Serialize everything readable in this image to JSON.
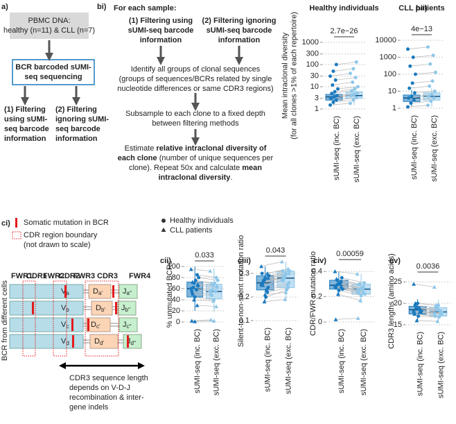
{
  "panel_a": {
    "label": "a)",
    "source": [
      "PBMC DNA:",
      "healthy (n=11) & CLL (n=7)"
    ],
    "sequencing": [
      "BCR barcoded sUMI-",
      "seq sequencing"
    ],
    "option1": [
      "(1) Filtering",
      "using sUMI-",
      "seq barcode",
      "information"
    ],
    "option2": [
      "(2) Filtering",
      "ignoring sUMI-",
      "seq barcode",
      "information"
    ]
  },
  "panel_bi": {
    "label": "bi)",
    "heading": "For each sample:",
    "option1": [
      "(1) Filtering using",
      "sUMI-seq barcode",
      "information"
    ],
    "option2": [
      "(2) Filtering ignoring",
      "sUMI-seq barcode",
      "information"
    ],
    "identify": [
      "Identify all groups of clonal sequences",
      "(groups of sequences/BCRs related by single",
      "nucleotide differences or same CDR3 regions)"
    ],
    "subsample": [
      "Subsample to each clone to a fixed depth",
      "between filtering methods"
    ],
    "estimate": [
      [
        {
          "text": "Estimate "
        },
        {
          "text": "relative intraclonal diversity of",
          "bold": true
        }
      ],
      [
        {
          "text": "each clone",
          "bold": true
        },
        {
          "text": " (number of unique sequences per"
        }
      ],
      [
        {
          "text": "clone). Repeat 50x and calculate "
        },
        {
          "text": "mean",
          "bold": true
        }
      ],
      [
        {
          "text": "intraclonal diversity",
          "bold": true
        },
        {
          "text": "."
        }
      ]
    ]
  },
  "panel_ci": {
    "label": "ci)",
    "legend": [
      "Somatic mutation in BCR",
      "CDR region boundary",
      "(not drawn to scale)"
    ],
    "regions": [
      "FWR1",
      "CDR1",
      "FWR2",
      "CDR2",
      "FWR3",
      "CDR3",
      "FWR4"
    ],
    "segment_letters": [
      "V",
      "D",
      "J"
    ],
    "rows": [
      {
        "v": "a",
        "d": "a′",
        "j": "a′′"
      },
      {
        "v": "b",
        "d": "b′",
        "j": "b′′"
      },
      {
        "v": "c",
        "d": "c′",
        "j": "c′′"
      },
      {
        "v": "d",
        "d": "d′",
        "j": "d′′"
      }
    ],
    "side_label": "BCR from different cells",
    "note": [
      "CDR3 sequence length",
      "depends on V-D-J",
      "recombination & inter-",
      "gene indels"
    ]
  },
  "panel_c_legend": [
    "Healthy individuals",
    "CLL patients"
  ],
  "chart_data": [
    {
      "type": "box",
      "panel_label": "bii)",
      "title": "Healthy individuals",
      "ylabel": [
        "Mean intraclonal diversity",
        "(for all clones >1% of each repertoire)"
      ],
      "pvalue": "2.7e−26",
      "log": true,
      "grid": true,
      "ylim": [
        1,
        1000
      ],
      "yticks": [
        1,
        3,
        10,
        30,
        100,
        300,
        1000
      ],
      "series": [
        {
          "name": "sUMI-seq (inc. BC)",
          "color": "#1a7abf",
          "values": [
            1.5,
            2,
            2.5,
            3,
            3.5,
            4,
            5,
            6,
            8,
            12,
            20,
            30,
            50,
            100
          ],
          "box": {
            "whislo": 1.5,
            "q1": 2.5,
            "med": 3.5,
            "q3": 4.5,
            "whishi": 7
          }
        },
        {
          "name": "sUMI-seq (exc. BC)",
          "color": "#8ec7ea",
          "values": [
            1.8,
            2.5,
            3.2,
            4,
            4.5,
            5.2,
            6.5,
            8,
            10,
            16,
            26,
            40,
            65,
            130
          ],
          "box": {
            "whislo": 1.5,
            "q1": 3,
            "med": 4,
            "q3": 6,
            "whishi": 10
          }
        }
      ]
    },
    {
      "type": "box",
      "title": "CLL patients",
      "pvalue": "4e−13",
      "log": true,
      "grid": true,
      "ylim": [
        1,
        10000
      ],
      "yticks": [
        1,
        10,
        100,
        1000,
        10000
      ],
      "series": [
        {
          "name": "sUMI-seq (inc. BC)",
          "color": "#1a7abf",
          "values": [
            1.2,
            2,
            3,
            4,
            5,
            8,
            15,
            30,
            100,
            300,
            1000,
            3000
          ],
          "box": {
            "whislo": 1.2,
            "q1": 2.5,
            "med": 4,
            "q3": 6,
            "whishi": 12
          }
        },
        {
          "name": "sUMI-seq (exc. BC)",
          "color": "#8ec7ea",
          "values": [
            1.5,
            2.6,
            4,
            5,
            6.5,
            10,
            20,
            40,
            130,
            400,
            1300,
            4000
          ],
          "box": {
            "whislo": 1.2,
            "q1": 3,
            "med": 5,
            "q3": 8,
            "whishi": 15
          }
        }
      ]
    },
    {
      "type": "box",
      "panel_label": "cii)",
      "ylabel": [
        "% unmutated BCRs"
      ],
      "pvalue": "0.033",
      "grid": true,
      "ylim": [
        0,
        100
      ],
      "yticks": [
        0,
        20,
        40,
        60,
        80,
        100
      ],
      "markers": [
        "circle",
        "circle",
        "circle",
        "circle",
        "circle",
        "circle",
        "circle",
        "circle",
        "circle",
        "circle",
        "circle",
        "triangle",
        "triangle",
        "triangle",
        "triangle",
        "triangle",
        "triangle",
        "triangle"
      ],
      "series": [
        {
          "name": "sUMI-seq (inc. BC)",
          "color": "#1a7abf",
          "values": [
            60,
            70,
            85,
            55,
            45,
            65,
            50,
            75,
            80,
            62,
            58,
            95,
            40,
            30,
            2,
            1,
            68,
            72
          ],
          "box": {
            "whislo": 20,
            "q1": 45,
            "med": 60,
            "q3": 72,
            "whishi": 100
          }
        },
        {
          "name": "sUMI-seq (exc. BC)",
          "color": "#8ec7ea",
          "values": [
            55,
            65,
            80,
            50,
            40,
            62,
            48,
            70,
            75,
            58,
            55,
            92,
            38,
            28,
            4,
            2,
            65,
            70
          ],
          "box": {
            "whislo": 18,
            "q1": 42,
            "med": 55,
            "q3": 68,
            "whishi": 97
          }
        }
      ]
    },
    {
      "type": "box",
      "panel_label": "ciii)",
      "ylabel": [
        "Silent-to-non-silent mutation ratio"
      ],
      "pvalue": "0.043",
      "grid": true,
      "ylim": [
        0.1,
        0.35
      ],
      "yticks": [
        0.1,
        0.2,
        0.3
      ],
      "markers": [
        "circle",
        "circle",
        "circle",
        "circle",
        "circle",
        "circle",
        "circle",
        "circle",
        "circle",
        "circle",
        "circle",
        "triangle",
        "triangle",
        "triangle",
        "triangle",
        "triangle",
        "triangle",
        "triangle"
      ],
      "series": [
        {
          "name": "sUMI-seq (inc. BC)",
          "color": "#1a7abf",
          "values": [
            0.25,
            0.27,
            0.22,
            0.3,
            0.28,
            0.24,
            0.26,
            0.2,
            0.29,
            0.27,
            0.23,
            0.33,
            0.18,
            0.3,
            0.26,
            0.21,
            0.28,
            0.25
          ],
          "box": {
            "whislo": 0.18,
            "q1": 0.23,
            "med": 0.26,
            "q3": 0.29,
            "whishi": 0.33
          }
        },
        {
          "name": "sUMI-seq (exc. BC)",
          "color": "#8ec7ea",
          "values": [
            0.27,
            0.29,
            0.24,
            0.31,
            0.3,
            0.26,
            0.28,
            0.23,
            0.31,
            0.28,
            0.25,
            0.35,
            0.19,
            0.32,
            0.29,
            0.22,
            0.3,
            0.27
          ],
          "box": {
            "whislo": 0.19,
            "q1": 0.24,
            "med": 0.28,
            "q3": 0.31,
            "whishi": 0.35
          }
        }
      ]
    },
    {
      "type": "box",
      "panel_label": "civ)",
      "ylabel": [
        "CDR/FWR mutation ratio"
      ],
      "pvalue": "0.00059",
      "grid": true,
      "ylim": [
        0,
        0.45
      ],
      "yticks": [
        0,
        0.2,
        0.4
      ],
      "markers": [
        "circle",
        "circle",
        "circle",
        "circle",
        "circle",
        "circle",
        "circle",
        "circle",
        "circle",
        "circle",
        "circle",
        "triangle",
        "triangle",
        "triangle",
        "triangle",
        "triangle",
        "triangle",
        "triangle"
      ],
      "series": [
        {
          "name": "sUMI-seq (inc. BC)",
          "color": "#1a7abf",
          "values": [
            0.28,
            0.3,
            0.32,
            0.27,
            0.25,
            0.35,
            0.29,
            0.31,
            0.26,
            0.33,
            0.3,
            0.4,
            0.22,
            0.28,
            0.02,
            0.3,
            0.27,
            0.34
          ],
          "box": {
            "whislo": 0.2,
            "q1": 0.26,
            "med": 0.29,
            "q3": 0.33,
            "whishi": 0.4
          }
        },
        {
          "name": "sUMI-seq (exc. BC)",
          "color": "#8ec7ea",
          "values": [
            0.25,
            0.26,
            0.28,
            0.23,
            0.21,
            0.31,
            0.25,
            0.27,
            0.22,
            0.3,
            0.26,
            0.38,
            0.17,
            0.24,
            0.03,
            0.26,
            0.23,
            0.3
          ],
          "box": {
            "whislo": 0.15,
            "q1": 0.22,
            "med": 0.26,
            "q3": 0.3,
            "whishi": 0.38
          }
        }
      ]
    },
    {
      "type": "box",
      "panel_label": "cv)",
      "ylabel": [
        "CDR3 lengths (amino acids)"
      ],
      "pvalue": "0.0036",
      "grid": true,
      "ylim": [
        15,
        26
      ],
      "yticks": [
        15,
        20,
        25
      ],
      "markers": [
        "circle",
        "circle",
        "circle",
        "circle",
        "circle",
        "circle",
        "circle",
        "circle",
        "circle",
        "circle",
        "circle",
        "triangle",
        "triangle",
        "triangle",
        "triangle",
        "triangle",
        "triangle",
        "triangle"
      ],
      "series": [
        {
          "name": "sUMI-seq (inc. BC)",
          "color": "#1a7abf",
          "values": [
            18,
            19,
            18.5,
            17.5,
            20,
            18,
            19.5,
            17,
            18.2,
            19,
            18.8,
            24.5,
            16,
            18,
            17.5,
            19,
            18,
            20
          ],
          "box": {
            "whislo": 16,
            "q1": 17.5,
            "med": 18.5,
            "q3": 19.3,
            "whishi": 21
          }
        },
        {
          "name": "sUMI-seq (exc. BC)",
          "color": "#8ec7ea",
          "values": [
            17.6,
            18.5,
            18.2,
            17,
            19.5,
            17.6,
            19,
            16.8,
            17.8,
            18.6,
            18.3,
            23.8,
            15.8,
            17.7,
            17.2,
            18.6,
            17.5,
            19.6
          ],
          "box": {
            "whislo": 15.8,
            "q1": 17,
            "med": 18,
            "q3": 19,
            "whishi": 20.8
          }
        }
      ]
    }
  ]
}
